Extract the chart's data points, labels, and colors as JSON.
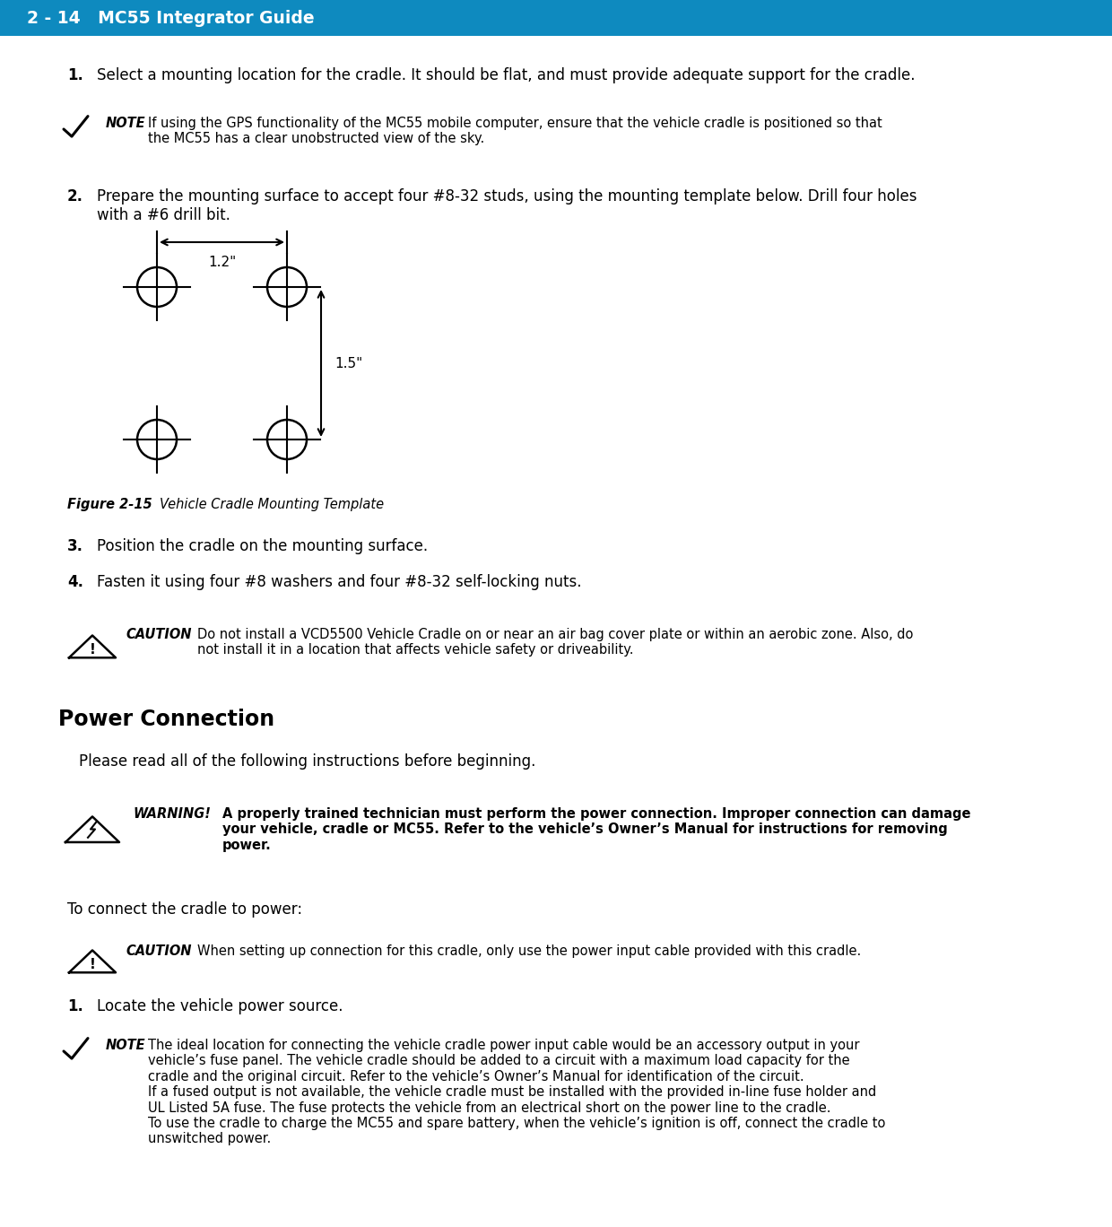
{
  "header_bg": "#0e8abf",
  "header_text": "2 - 14   MC55 Integrator Guide",
  "header_text_color": "#ffffff",
  "page_bg": "#ffffff",
  "step1_text": "Select a mounting location for the cradle. It should be flat, and must provide adequate support for the cradle.",
  "note1_text": "If using the GPS functionality of the MC55 mobile computer, ensure that the vehicle cradle is positioned so that\nthe MC55 has a clear unobstructed view of the sky.",
  "step2_text": "Prepare the mounting surface to accept four #8-32 studs, using the mounting template below. Drill four holes\nwith a #6 drill bit.",
  "dim_h": "1.2\"",
  "dim_v": "1.5\"",
  "figure_caption_bold": "Figure 2-15",
  "figure_caption_italic": "   Vehicle Cradle Mounting Template",
  "step3_text": "Position the cradle on the mounting surface.",
  "step4_text": "Fasten it using four #8 washers and four #8-32 self-locking nuts.",
  "caution1_text": "Do not install a VCD5500 Vehicle Cradle on or near an air bag cover plate or within an aerobic zone. Also, do\nnot install it in a location that affects vehicle safety or driveability.",
  "section_title": "Power Connection",
  "intro_text": "Please read all of the following instructions before beginning.",
  "warning_text": "A properly trained technician must perform the power connection. Improper connection can damage\nyour vehicle, cradle or MC55. Refer to the vehicle’s Owner’s Manual for instructions for removing\npower.",
  "connect_text": "To connect the cradle to power:",
  "caution2_text": "When setting up connection for this cradle, only use the power input cable provided with this cradle.",
  "step1b_text": "Locate the vehicle power source.",
  "note2_text": "The ideal location for connecting the vehicle cradle power input cable would be an accessory output in your\nvehicle’s fuse panel. The vehicle cradle should be added to a circuit with a maximum load capacity for the\ncradle and the original circuit. Refer to the vehicle’s Owner’s Manual for identification of the circuit.\nIf a fused output is not available, the vehicle cradle must be installed with the provided in-line fuse holder and\nUL Listed 5A fuse. The fuse protects the vehicle from an electrical short on the power line to the cradle.\nTo use the cradle to charge the MC55 and spare battery, when the vehicle’s ignition is off, connect the cradle to\nunswitched power."
}
